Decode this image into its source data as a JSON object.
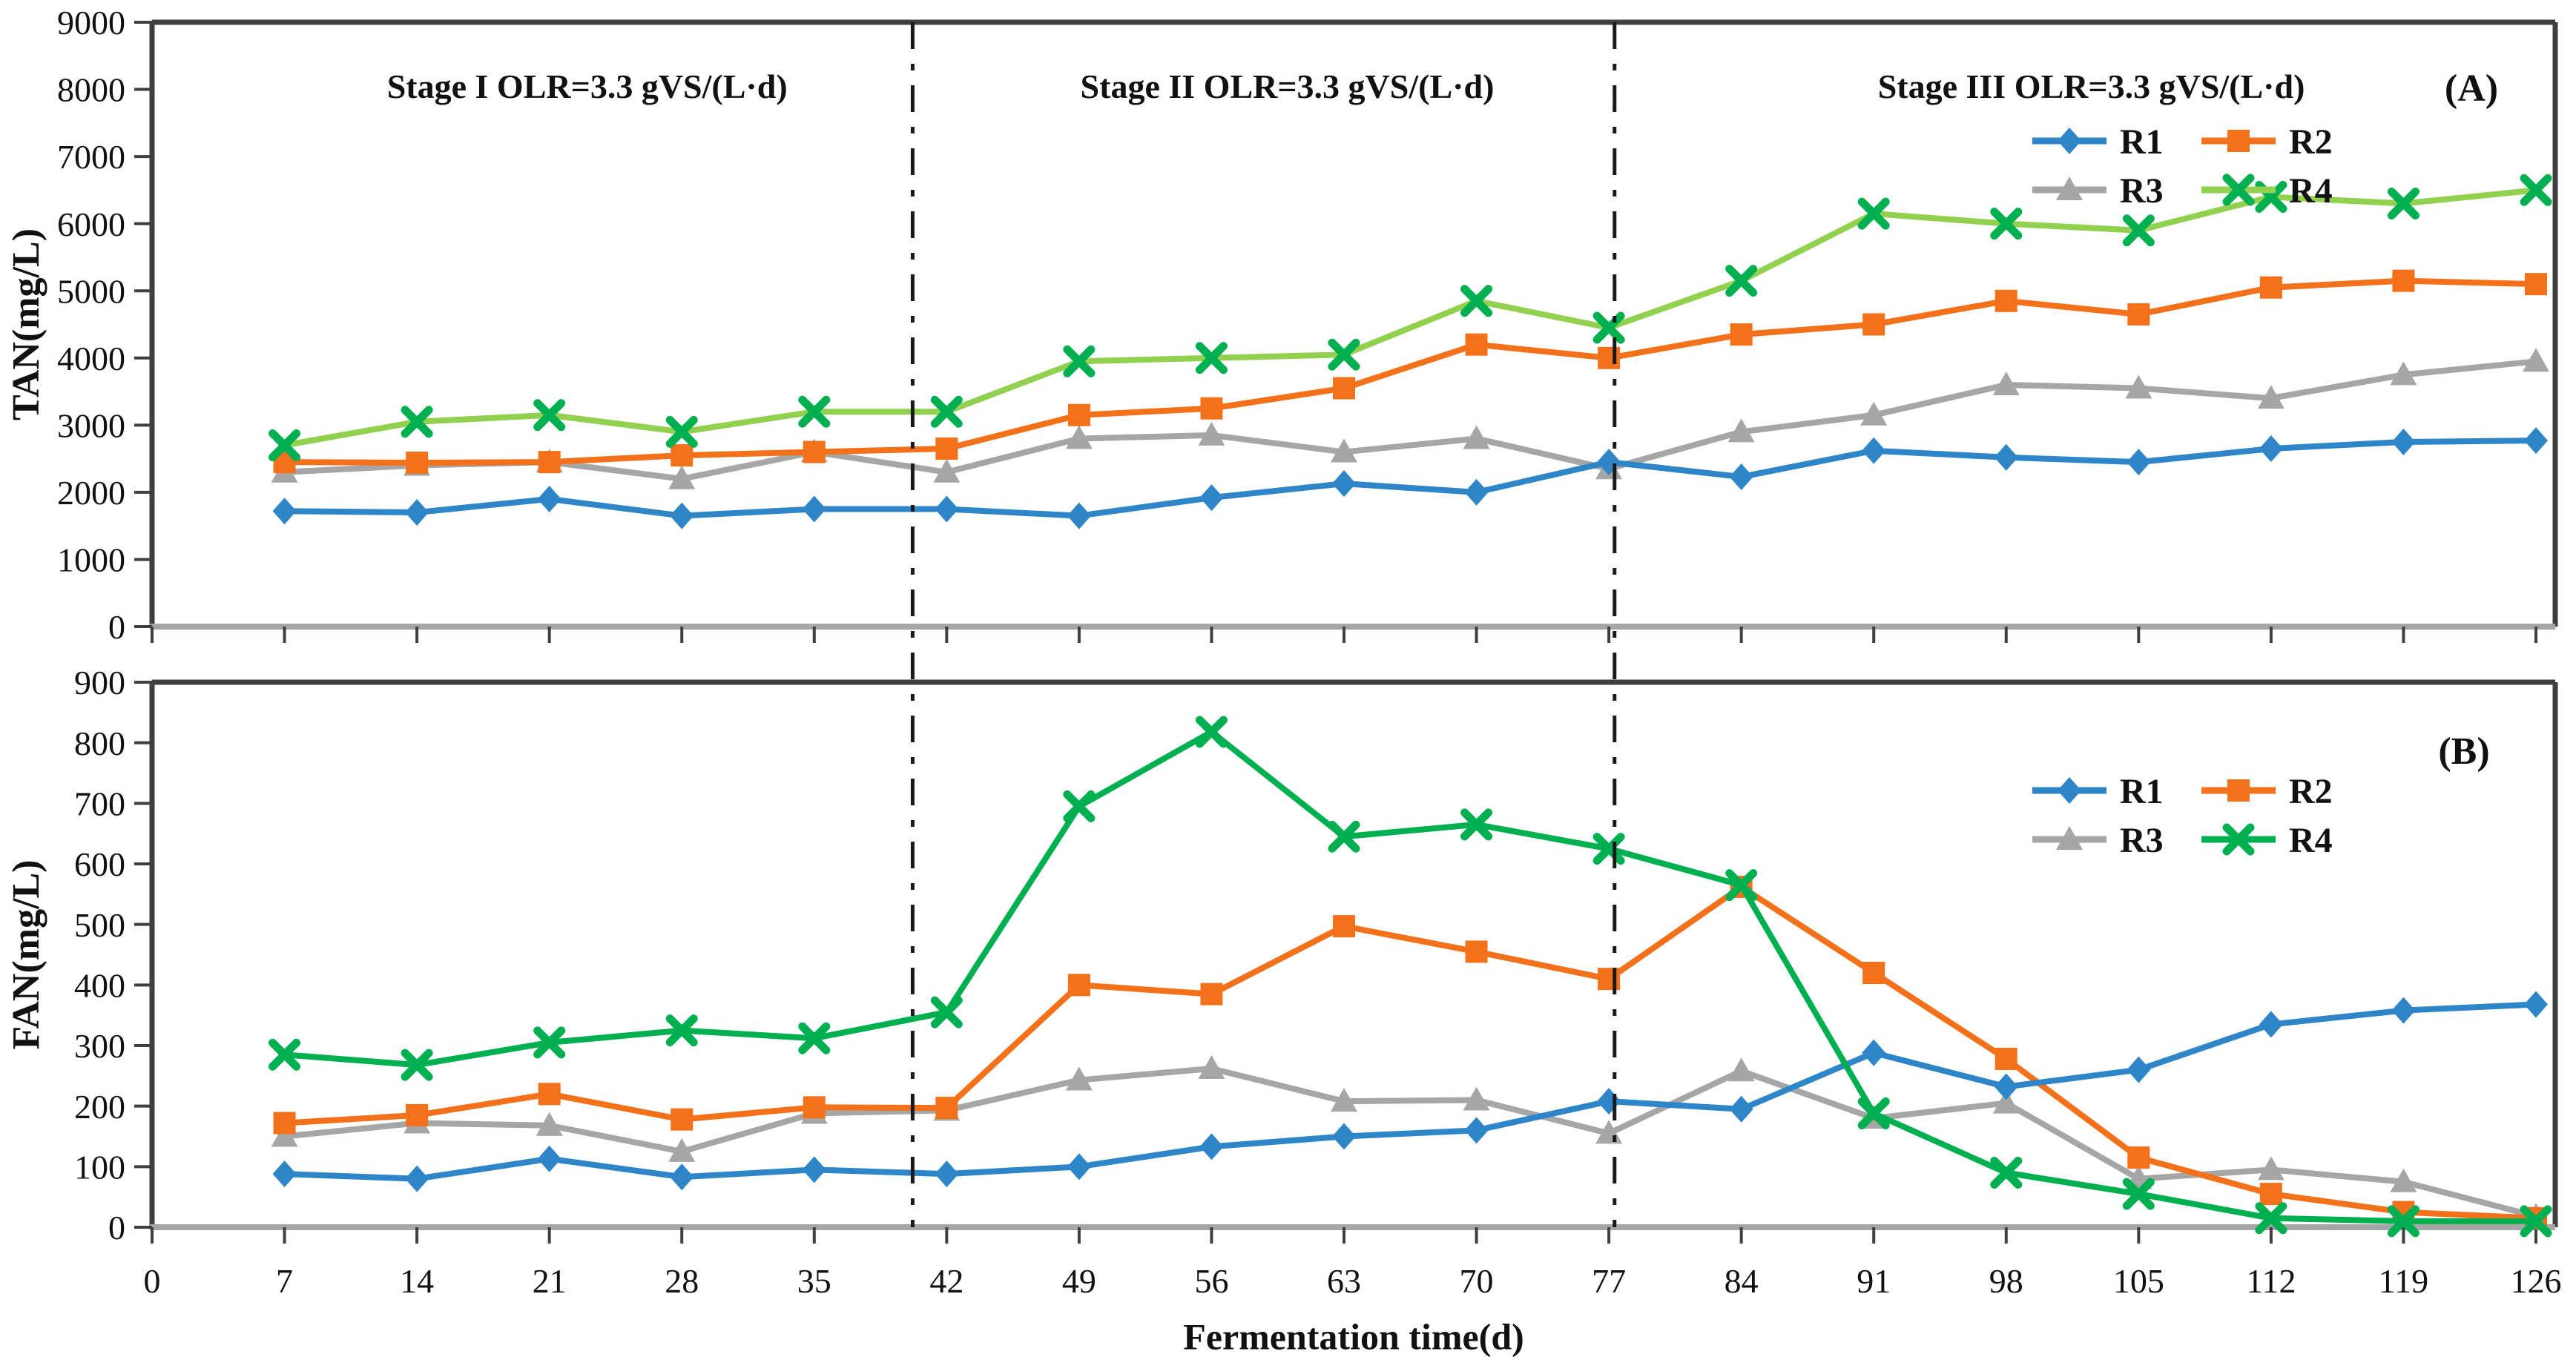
{
  "figure": {
    "background": "#ffffff",
    "axis_color": "#3f3f3f",
    "baseline_color": "#a6a6a6",
    "stage_line_color": "#1a1a1a",
    "text_color": "#111111",
    "xlabel": "Fermentation time(d)",
    "x_tick_labels": [
      0,
      7,
      14,
      21,
      28,
      35,
      42,
      49,
      56,
      63,
      70,
      77,
      84,
      91,
      98,
      105,
      112,
      119,
      126
    ],
    "x_range_days": [
      0,
      126
    ],
    "stage_boundaries_day": [
      40.2,
      77.3
    ],
    "legend_labels": [
      "R1",
      "R2",
      "R3",
      "R4"
    ]
  },
  "chart_data": [
    {
      "type": "line",
      "panel_label": "(A)",
      "ylabel": "TAN(mg/L)",
      "ylim": [
        0,
        9000
      ],
      "ytick_step": 1000,
      "grid": false,
      "legend_position": "top-right",
      "x_days": [
        7,
        14,
        21,
        28,
        35,
        42,
        49,
        56,
        63,
        70,
        77,
        84,
        91,
        98,
        105,
        112,
        119,
        126
      ],
      "annotations": [
        {
          "text": "Stage I    OLR=3.3 gVS/(L·d)",
          "day": 23,
          "value": 8050
        },
        {
          "text": "Stage II    OLR=3.3 gVS/(L·d)",
          "day": 60,
          "value": 8050
        },
        {
          "text": "Stage III    OLR=3.3 gVS/(L·d)",
          "day": 102.5,
          "value": 8050
        }
      ],
      "series": [
        {
          "name": "R1",
          "marker": "diamond",
          "line_color": "#2E86C9",
          "marker_color": "#2E86C9",
          "values": [
            1720,
            1700,
            1900,
            1650,
            1750,
            1750,
            1650,
            1920,
            2130,
            2000,
            2450,
            2230,
            2620,
            2520,
            2450,
            2650,
            2750,
            2770
          ]
        },
        {
          "name": "R2",
          "marker": "square",
          "line_color": "#F4711C",
          "marker_color": "#F4711C",
          "values": [
            2450,
            2440,
            2450,
            2550,
            2600,
            2650,
            3150,
            3250,
            3550,
            4200,
            4000,
            4350,
            4500,
            4850,
            4650,
            5050,
            5150,
            5100
          ]
        },
        {
          "name": "R3",
          "marker": "triangle",
          "line_color": "#A6A6A6",
          "marker_color": "#A6A6A6",
          "values": [
            2300,
            2400,
            2450,
            2200,
            2600,
            2300,
            2800,
            2850,
            2600,
            2800,
            2350,
            2900,
            3150,
            3600,
            3550,
            3400,
            3750,
            3950
          ]
        },
        {
          "name": "R4",
          "marker": "x",
          "line_color": "#92D050",
          "marker_color": "#00B050",
          "values": [
            2700,
            3050,
            3150,
            2900,
            3200,
            3200,
            3950,
            4000,
            4050,
            4850,
            4450,
            5150,
            6150,
            6000,
            5900,
            6400,
            6300,
            6500
          ]
        }
      ]
    },
    {
      "type": "line",
      "panel_label": "(B)",
      "ylabel": "FAN(mg/L)",
      "ylim": [
        0,
        900
      ],
      "ytick_step": 100,
      "grid": false,
      "legend_position": "top-right",
      "x_days": [
        7,
        14,
        21,
        28,
        35,
        42,
        49,
        56,
        63,
        70,
        77,
        84,
        91,
        98,
        105,
        112,
        119,
        126
      ],
      "annotations": [],
      "series": [
        {
          "name": "R1",
          "marker": "diamond",
          "line_color": "#2E86C9",
          "marker_color": "#2E86C9",
          "values": [
            88,
            80,
            113,
            83,
            95,
            88,
            100,
            133,
            150,
            160,
            208,
            195,
            288,
            232,
            260,
            335,
            358,
            368
          ]
        },
        {
          "name": "R2",
          "marker": "square",
          "line_color": "#F4711C",
          "marker_color": "#F4711C",
          "values": [
            172,
            185,
            220,
            178,
            198,
            197,
            400,
            385,
            497,
            455,
            410,
            562,
            420,
            278,
            115,
            55,
            25,
            15
          ]
        },
        {
          "name": "R3",
          "marker": "triangle",
          "line_color": "#A6A6A6",
          "marker_color": "#A6A6A6",
          "values": [
            150,
            172,
            168,
            125,
            188,
            193,
            243,
            262,
            208,
            210,
            155,
            258,
            180,
            205,
            80,
            95,
            75,
            18
          ]
        },
        {
          "name": "R4",
          "marker": "x",
          "line_color": "#00B050",
          "marker_color": "#00B050",
          "values": [
            285,
            268,
            305,
            325,
            312,
            355,
            695,
            818,
            645,
            665,
            625,
            565,
            188,
            90,
            55,
            15,
            10,
            10
          ]
        }
      ]
    }
  ]
}
